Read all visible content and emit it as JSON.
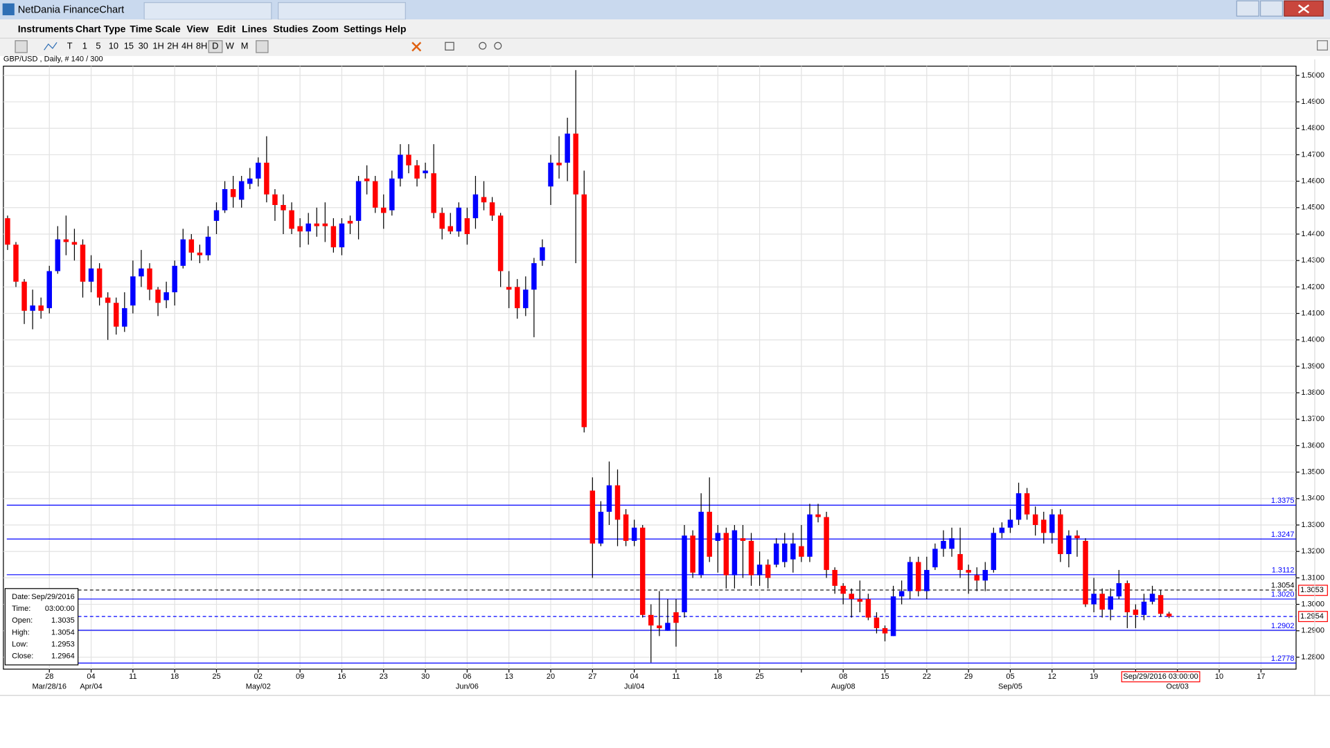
{
  "window_title": "NetDania FinanceChart",
  "menu": [
    "Instruments",
    "Chart Type",
    "Time Scale",
    "View",
    "Edit",
    "Lines",
    "Studies",
    "Zoom",
    "Settings",
    "Help"
  ],
  "toolbar": [
    "T",
    "1",
    "5",
    "10",
    "15",
    "30",
    "1H",
    "2H",
    "4H",
    "8H",
    "D",
    "W",
    "M"
  ],
  "chart_data": {
    "type": "candlestick",
    "title": "GBP/USD , Daily, # 140 / 300",
    "up_color": "#0000ff",
    "down_color": "#ff0000",
    "xlim": [
      -0.5,
      154.2
    ],
    "ylim": [
      1.2755,
      1.5035
    ],
    "grid": true,
    "xticks": [
      {
        "value": 5,
        "label": "28"
      },
      {
        "value": 10,
        "label": "04"
      },
      {
        "value": 15,
        "label": "11"
      },
      {
        "value": 20,
        "label": "18"
      },
      {
        "value": 25,
        "label": "25"
      },
      {
        "value": 30,
        "label": "02"
      },
      {
        "value": 35,
        "label": "09"
      },
      {
        "value": 40,
        "label": "16"
      },
      {
        "value": 45,
        "label": "23"
      },
      {
        "value": 50,
        "label": "30"
      },
      {
        "value": 55,
        "label": "06"
      },
      {
        "value": 60,
        "label": "13"
      },
      {
        "value": 65,
        "label": "20"
      },
      {
        "value": 70,
        "label": "27"
      },
      {
        "value": 75,
        "label": "04"
      },
      {
        "value": 80,
        "label": "11"
      },
      {
        "value": 85,
        "label": "18"
      },
      {
        "value": 90,
        "label": "25"
      },
      {
        "value": 95,
        "label": null
      },
      {
        "value": 100,
        "label": "08"
      },
      {
        "value": 105,
        "label": "15"
      },
      {
        "value": 110,
        "label": "22"
      },
      {
        "value": 115,
        "label": "29"
      },
      {
        "value": 120,
        "label": "05"
      },
      {
        "value": 125,
        "label": "12"
      },
      {
        "value": 130,
        "label": "19"
      },
      {
        "value": 135,
        "label": null
      },
      {
        "value": 140,
        "label": "03"
      },
      {
        "value": 145,
        "label": "10"
      },
      {
        "value": 150,
        "label": "17"
      }
    ],
    "xticks_month": [
      {
        "value": 5,
        "label": "Mar/28/16"
      },
      {
        "value": 10,
        "label": "Apr/04"
      },
      {
        "value": 30,
        "label": "May/02"
      },
      {
        "value": 55,
        "label": "Jun/06"
      },
      {
        "value": 75,
        "label": "Jul/04"
      },
      {
        "value": 100,
        "label": "Aug/08"
      },
      {
        "value": 120,
        "label": "Sep/05"
      },
      {
        "value": 140,
        "label": "Oct/03"
      }
    ],
    "yticks": [
      {
        "value": 1.28,
        "label": "1.2800"
      },
      {
        "value": 1.29,
        "label": "1.2900"
      },
      {
        "value": 1.3,
        "label": "1.3000"
      },
      {
        "value": 1.31,
        "label": "1.3100"
      },
      {
        "value": 1.32,
        "label": "1.3200"
      },
      {
        "value": 1.33,
        "label": "1.3300"
      },
      {
        "value": 1.34,
        "label": "1.3400"
      },
      {
        "value": 1.35,
        "label": "1.3500"
      },
      {
        "value": 1.36,
        "label": "1.3600"
      },
      {
        "value": 1.37,
        "label": "1.3700"
      },
      {
        "value": 1.38,
        "label": "1.3800"
      },
      {
        "value": 1.39,
        "label": "1.3900"
      },
      {
        "value": 1.4,
        "label": "1.4000"
      },
      {
        "value": 1.41,
        "label": "1.4100"
      },
      {
        "value": 1.42,
        "label": "1.4200"
      },
      {
        "value": 1.43,
        "label": "1.4300"
      },
      {
        "value": 1.44,
        "label": "1.4400"
      },
      {
        "value": 1.45,
        "label": "1.4500"
      },
      {
        "value": 1.46,
        "label": "1.4600"
      },
      {
        "value": 1.47,
        "label": "1.4700"
      },
      {
        "value": 1.48,
        "label": "1.4800"
      },
      {
        "value": 1.49,
        "label": "1.4900"
      },
      {
        "value": 1.5,
        "label": "1.5000"
      }
    ],
    "hlines": [
      {
        "value": 1.3375,
        "color": "#0000ff",
        "dashed": false
      },
      {
        "value": 1.3247,
        "color": "#0000ff",
        "dashed": false
      },
      {
        "value": 1.3112,
        "color": "#0000ff",
        "dashed": false
      },
      {
        "value": 1.3054,
        "color": "#000000",
        "dashed": true
      },
      {
        "value": 1.302,
        "label": "1.3020",
        "color": "#0000ff",
        "dashed": false
      },
      {
        "value": 1.2954,
        "color": "#0000ff",
        "dashed": true,
        "unlabeled": true
      },
      {
        "value": 1.2902,
        "color": "#0000ff",
        "dashed": false
      },
      {
        "value": 1.2778,
        "color": "#0000ff",
        "dashed": false
      }
    ],
    "axis_markers": [
      {
        "value": 1.3053,
        "label": "1.3053"
      },
      {
        "value": 1.2954,
        "label": "1.2954"
      }
    ],
    "cursor": {
      "value": 138,
      "label": "Sep/29/2016 03:00:00"
    },
    "info": [
      [
        "Date:",
        "Sep/29/2016"
      ],
      [
        "Time:",
        "03:00:00"
      ],
      [
        "Open:",
        "1.3035"
      ],
      [
        "High:",
        "1.3054"
      ],
      [
        "Low:",
        "1.2953"
      ],
      [
        "Close:",
        "1.2964"
      ]
    ],
    "ohlc": [
      [
        1.446,
        1.447,
        1.434,
        1.436
      ],
      [
        1.436,
        1.437,
        1.42,
        1.422
      ],
      [
        1.422,
        1.423,
        1.406,
        1.411
      ],
      [
        1.411,
        1.419,
        1.404,
        1.413
      ],
      [
        1.413,
        1.416,
        1.408,
        1.411
      ],
      [
        1.412,
        1.428,
        1.41,
        1.426
      ],
      [
        1.426,
        1.443,
        1.425,
        1.438
      ],
      [
        1.438,
        1.447,
        1.432,
        1.437
      ],
      [
        1.437,
        1.442,
        1.43,
        1.436
      ],
      [
        1.436,
        1.438,
        1.416,
        1.422
      ],
      [
        1.422,
        1.432,
        1.418,
        1.427
      ],
      [
        1.427,
        1.429,
        1.413,
        1.416
      ],
      [
        1.416,
        1.418,
        1.4,
        1.414
      ],
      [
        1.414,
        1.416,
        1.402,
        1.405
      ],
      [
        1.405,
        1.418,
        1.403,
        1.412
      ],
      [
        1.413,
        1.43,
        1.41,
        1.424
      ],
      [
        1.424,
        1.434,
        1.42,
        1.427
      ],
      [
        1.427,
        1.429,
        1.415,
        1.419
      ],
      [
        1.419,
        1.42,
        1.409,
        1.414
      ],
      [
        1.415,
        1.422,
        1.412,
        1.418
      ],
      [
        1.418,
        1.43,
        1.413,
        1.428
      ],
      [
        1.428,
        1.442,
        1.427,
        1.438
      ],
      [
        1.438,
        1.44,
        1.43,
        1.433
      ],
      [
        1.433,
        1.436,
        1.429,
        1.432
      ],
      [
        1.432,
        1.443,
        1.43,
        1.439
      ],
      [
        1.445,
        1.452,
        1.44,
        1.449
      ],
      [
        1.449,
        1.46,
        1.448,
        1.457
      ],
      [
        1.457,
        1.462,
        1.45,
        1.454
      ],
      [
        1.453,
        1.462,
        1.45,
        1.46
      ],
      [
        1.459,
        1.465,
        1.457,
        1.461
      ],
      [
        1.461,
        1.469,
        1.458,
        1.467
      ],
      [
        1.467,
        1.477,
        1.452,
        1.455
      ],
      [
        1.455,
        1.457,
        1.445,
        1.451
      ],
      [
        1.451,
        1.455,
        1.44,
        1.449
      ],
      [
        1.449,
        1.452,
        1.44,
        1.442
      ],
      [
        1.443,
        1.446,
        1.435,
        1.441
      ],
      [
        1.441,
        1.448,
        1.436,
        1.444
      ],
      [
        1.444,
        1.45,
        1.439,
        1.443
      ],
      [
        1.444,
        1.452,
        1.437,
        1.443
      ],
      [
        1.443,
        1.446,
        1.433,
        1.435
      ],
      [
        1.435,
        1.446,
        1.432,
        1.444
      ],
      [
        1.445,
        1.447,
        1.44,
        1.444
      ],
      [
        1.445,
        1.462,
        1.438,
        1.46
      ],
      [
        1.461,
        1.466,
        1.455,
        1.46
      ],
      [
        1.46,
        1.462,
        1.448,
        1.45
      ],
      [
        1.45,
        1.455,
        1.442,
        1.448
      ],
      [
        1.449,
        1.464,
        1.447,
        1.461
      ],
      [
        1.461,
        1.474,
        1.458,
        1.47
      ],
      [
        1.47,
        1.474,
        1.463,
        1.466
      ],
      [
        1.466,
        1.468,
        1.458,
        1.461
      ],
      [
        1.463,
        1.467,
        1.461,
        1.464
      ],
      [
        1.463,
        1.474,
        1.446,
        1.448
      ],
      [
        1.448,
        1.45,
        1.438,
        1.442
      ],
      [
        1.443,
        1.448,
        1.44,
        1.441
      ],
      [
        1.441,
        1.452,
        1.439,
        1.45
      ],
      [
        1.446,
        1.45,
        1.436,
        1.44
      ],
      [
        1.446,
        1.462,
        1.442,
        1.455
      ],
      [
        1.454,
        1.46,
        1.449,
        1.452
      ],
      [
        1.452,
        1.454,
        1.445,
        1.447
      ],
      [
        1.447,
        1.448,
        1.42,
        1.426
      ],
      [
        1.42,
        1.426,
        1.412,
        1.419
      ],
      [
        1.42,
        1.423,
        1.408,
        1.412
      ],
      [
        1.412,
        1.424,
        1.409,
        1.419
      ],
      [
        1.419,
        1.431,
        1.401,
        1.429
      ],
      [
        1.43,
        1.438,
        1.428,
        1.435
      ],
      [
        1.458,
        1.47,
        1.451,
        1.467
      ],
      [
        1.467,
        1.477,
        1.461,
        1.466
      ],
      [
        1.467,
        1.484,
        1.46,
        1.478
      ],
      [
        1.478,
        1.502,
        1.429,
        1.455
      ],
      [
        1.455,
        1.464,
        1.365,
        1.367
      ],
      [
        1.343,
        1.348,
        1.31,
        1.323
      ],
      [
        1.323,
        1.339,
        1.322,
        1.335
      ],
      [
        1.335,
        1.354,
        1.33,
        1.345
      ],
      [
        1.345,
        1.351,
        1.322,
        1.332
      ],
      [
        1.334,
        1.336,
        1.322,
        1.324
      ],
      [
        1.324,
        1.332,
        1.322,
        1.329
      ],
      [
        1.329,
        1.33,
        1.295,
        1.296
      ],
      [
        1.296,
        1.3,
        1.278,
        1.292
      ],
      [
        1.292,
        1.305,
        1.288,
        1.291
      ],
      [
        1.29,
        1.302,
        1.29,
        1.293
      ],
      [
        1.297,
        1.302,
        1.284,
        1.293
      ],
      [
        1.297,
        1.33,
        1.295,
        1.326
      ],
      [
        1.326,
        1.328,
        1.31,
        1.312
      ],
      [
        1.311,
        1.342,
        1.31,
        1.335
      ],
      [
        1.335,
        1.348,
        1.316,
        1.318
      ],
      [
        1.324,
        1.33,
        1.312,
        1.327
      ],
      [
        1.327,
        1.329,
        1.306,
        1.311
      ],
      [
        1.311,
        1.33,
        1.306,
        1.328
      ],
      [
        1.325,
        1.33,
        1.31,
        1.324
      ],
      [
        1.324,
        1.327,
        1.307,
        1.311
      ],
      [
        1.311,
        1.32,
        1.307,
        1.315
      ],
      [
        1.315,
        1.317,
        1.306,
        1.31
      ],
      [
        1.315,
        1.325,
        1.314,
        1.323
      ],
      [
        1.316,
        1.327,
        1.314,
        1.323
      ],
      [
        1.317,
        1.327,
        1.312,
        1.323
      ],
      [
        1.322,
        1.33,
        1.316,
        1.318
      ],
      [
        1.318,
        1.338,
        1.316,
        1.334
      ],
      [
        1.334,
        1.338,
        1.331,
        1.333
      ],
      [
        1.333,
        1.335,
        1.31,
        1.313
      ],
      [
        1.313,
        1.314,
        1.304,
        1.307
      ],
      [
        1.307,
        1.308,
        1.3,
        1.304
      ],
      [
        1.304,
        1.306,
        1.295,
        1.302
      ],
      [
        1.302,
        1.309,
        1.297,
        1.301
      ],
      [
        1.302,
        1.304,
        1.294,
        1.295
      ],
      [
        1.295,
        1.297,
        1.289,
        1.291
      ],
      [
        1.291,
        1.292,
        1.286,
        1.289
      ],
      [
        1.288,
        1.307,
        1.288,
        1.303
      ],
      [
        1.303,
        1.309,
        1.3,
        1.305
      ],
      [
        1.305,
        1.318,
        1.302,
        1.316
      ],
      [
        1.316,
        1.318,
        1.303,
        1.305
      ],
      [
        1.305,
        1.318,
        1.302,
        1.313
      ],
      [
        1.314,
        1.323,
        1.313,
        1.321
      ],
      [
        1.321,
        1.328,
        1.318,
        1.324
      ],
      [
        1.321,
        1.329,
        1.318,
        1.325
      ],
      [
        1.319,
        1.329,
        1.31,
        1.313
      ],
      [
        1.313,
        1.315,
        1.304,
        1.312
      ],
      [
        1.311,
        1.314,
        1.305,
        1.309
      ],
      [
        1.309,
        1.316,
        1.305,
        1.313
      ],
      [
        1.313,
        1.329,
        1.312,
        1.327
      ],
      [
        1.327,
        1.331,
        1.325,
        1.329
      ],
      [
        1.329,
        1.336,
        1.327,
        1.332
      ],
      [
        1.332,
        1.346,
        1.33,
        1.342
      ],
      [
        1.342,
        1.344,
        1.332,
        1.334
      ],
      [
        1.334,
        1.337,
        1.326,
        1.33
      ],
      [
        1.332,
        1.335,
        1.323,
        1.327
      ],
      [
        1.327,
        1.336,
        1.323,
        1.334
      ],
      [
        1.334,
        1.336,
        1.316,
        1.319
      ],
      [
        1.319,
        1.328,
        1.314,
        1.326
      ],
      [
        1.326,
        1.328,
        1.318,
        1.325
      ],
      [
        1.324,
        1.325,
        1.299,
        1.3
      ],
      [
        1.3,
        1.31,
        1.297,
        1.304
      ],
      [
        1.304,
        1.306,
        1.295,
        1.298
      ],
      [
        1.298,
        1.306,
        1.294,
        1.303
      ],
      [
        1.303,
        1.313,
        1.302,
        1.308
      ],
      [
        1.308,
        1.309,
        1.291,
        1.297
      ],
      [
        1.298,
        1.3,
        1.291,
        1.296
      ],
      [
        1.296,
        1.304,
        1.294,
        1.301
      ],
      [
        1.301,
        1.307,
        1.3,
        1.304
      ],
      [
        1.3035,
        1.3054,
        1.2953,
        1.2964
      ],
      [
        1.2965,
        1.2972,
        1.2948,
        1.2954
      ]
    ]
  }
}
